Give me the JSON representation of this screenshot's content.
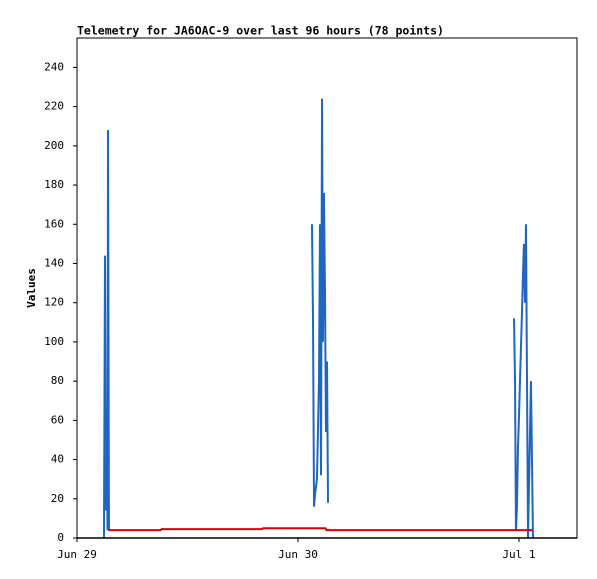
{
  "chart_data": {
    "type": "line",
    "title": "Telemetry for JA6OAC-9 over last 96 hours (78 points)",
    "y_label": "Values",
    "xlim": [
      0,
      54.3
    ],
    "xticks": [
      {
        "value": 0,
        "label": "Jun 29"
      },
      {
        "value": 24,
        "label": "Jun 30"
      },
      {
        "value": 48,
        "label": "Jul 1"
      }
    ],
    "ylim": [
      0,
      255
    ],
    "yticks": [
      0,
      20,
      40,
      60,
      80,
      100,
      120,
      140,
      160,
      180,
      200,
      220,
      240
    ],
    "series": [
      {
        "color": "#1f66c0",
        "x": [
          2.93,
          3.04,
          3.15,
          3.26,
          3.31,
          3.37,
          3.47,
          14.0,
          25.52,
          25.63,
          25.74,
          25.84,
          26.06,
          26.28,
          26.39,
          26.5,
          26.61,
          26.71,
          26.82,
          26.93,
          27.04,
          27.15,
          27.26,
          37.0,
          47.46,
          47.57,
          47.67,
          47.78,
          47.89,
          48.0,
          48.11,
          48.22,
          48.33,
          48.43,
          48.54,
          48.65,
          48.76,
          48.98,
          49.3,
          49.41,
          49.52
        ],
        "values": [
          0,
          144,
          14,
          67,
          4,
          208,
          4,
          null,
          160,
          112,
          16,
          22,
          30,
          80,
          160,
          32,
          224,
          100,
          176,
          126,
          54,
          90,
          18,
          null,
          112,
          80,
          4,
          16,
          46,
          62,
          80,
          98,
          116,
          134,
          150,
          120,
          160,
          0,
          80,
          40,
          0
        ]
      },
      {
        "color": "#dd0000",
        "x": [
          3.37,
          9.1,
          9.2,
          20.1,
          20.2,
          27.0,
          27.1,
          49.5
        ],
        "values": [
          4,
          4,
          4.5,
          4.5,
          5,
          5,
          4,
          4
        ]
      }
    ]
  }
}
